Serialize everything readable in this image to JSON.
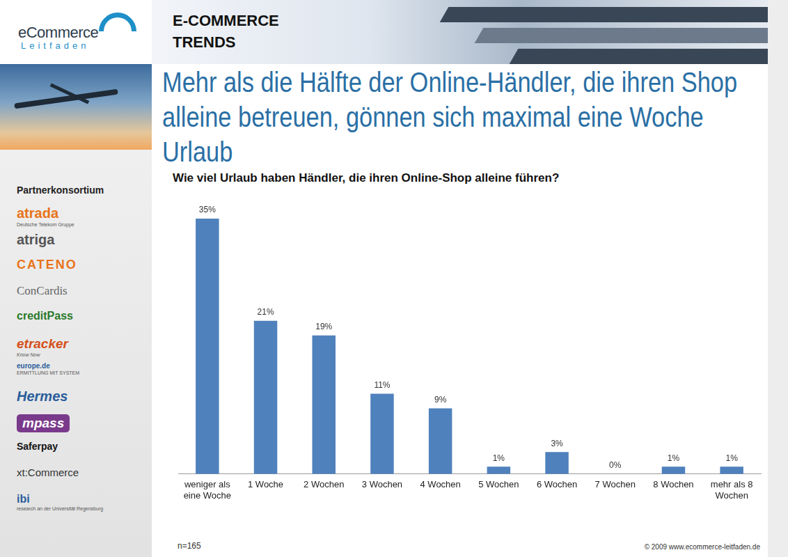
{
  "page": {
    "logo": {
      "name": "eCommerce",
      "sub": "Leitfaden"
    },
    "section": [
      "E-COMMERCE",
      "TRENDS"
    ],
    "headline": "Mehr als die Hälfte der Online-Händler, die ihren Shop alleine betreuen, gönnen sich maximal eine Woche Urlaub",
    "sidebar_heading": "Partnerkonsortium",
    "partners": [
      {
        "name": "atrada",
        "tagline": "Deutsche Telekom Gruppe"
      },
      {
        "name": "atriga"
      },
      {
        "name": "CATENO"
      },
      {
        "name": "ConCardis"
      },
      {
        "name": "creditPass"
      },
      {
        "name": "etracker",
        "tagline": "Know Now"
      },
      {
        "name": "europe.de",
        "tagline": "ERMITTLUNG MIT SYSTEM"
      },
      {
        "name": "Hermes"
      },
      {
        "name": "mpass"
      },
      {
        "name": "Saferpay"
      },
      {
        "name": "xt:Commerce"
      },
      {
        "name": "ibi",
        "tagline": "research an der Universität Regensburg"
      }
    ],
    "footer": {
      "sample": "n=165",
      "copyright": "© 2009 www.ecommerce-leitfaden.de"
    }
  },
  "chart_data": {
    "type": "bar",
    "title": "Wie viel Urlaub haben Händler, die ihren Online-Shop alleine führen?",
    "categories": [
      "weniger als eine Woche",
      "1 Woche",
      "2 Wochen",
      "3 Wochen",
      "4 Wochen",
      "5 Wochen",
      "6 Wochen",
      "7 Wochen",
      "8 Wochen",
      "mehr als 8 Wochen"
    ],
    "values": [
      35,
      21,
      19,
      11,
      9,
      1,
      3,
      0,
      1,
      1
    ],
    "value_labels": [
      "35%",
      "21%",
      "19%",
      "11%",
      "9%",
      "1%",
      "3%",
      "0%",
      "1%",
      "1%"
    ],
    "color": "#4f81bd",
    "ylim": [
      0,
      35
    ],
    "grid": false,
    "data_labels": true,
    "tick_labels": "x"
  }
}
